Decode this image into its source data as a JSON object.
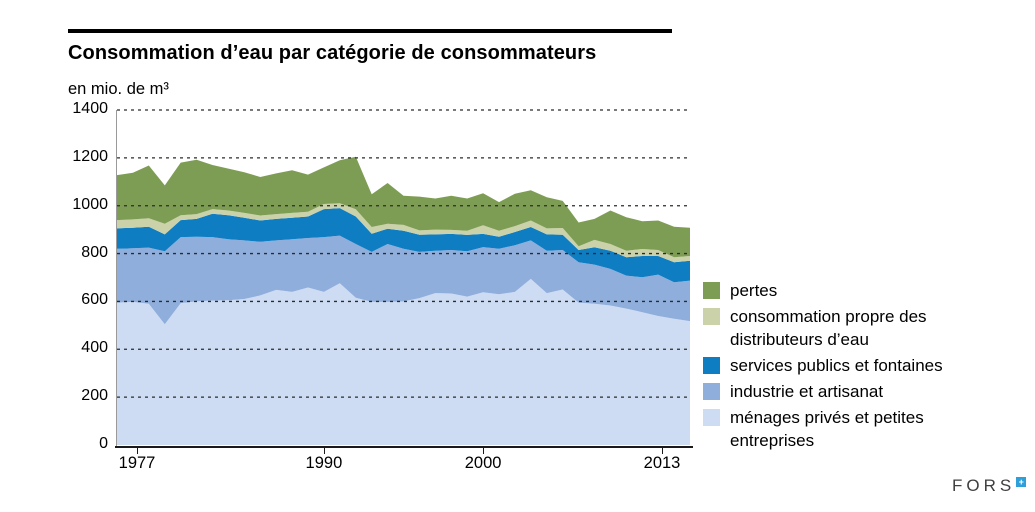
{
  "header": {
    "title": "Consommation d’eau par catégorie de consommateurs",
    "unit_label": "en mio. de m³"
  },
  "chart_data": {
    "type": "area",
    "stacked": true,
    "title": "Consommation d’eau par catégorie de consommateurs",
    "ylabel": "en mio. de m³",
    "ylim": [
      0,
      1400
    ],
    "yticks": [
      "0",
      "200",
      "400",
      "600",
      "800",
      "1000",
      "1200",
      "1400"
    ],
    "ytick_values": [
      0,
      200,
      400,
      600,
      800,
      1000,
      1200,
      1400
    ],
    "xticks": [
      1977,
      1990,
      2000,
      2013
    ],
    "grid": "horizontal-dashed",
    "legend_position": "right",
    "x": [
      1977,
      1978,
      1979,
      1980,
      1981,
      1982,
      1983,
      1984,
      1985,
      1986,
      1987,
      1988,
      1989,
      1990,
      1991,
      1992,
      1993,
      1994,
      1995,
      1996,
      1997,
      1998,
      1999,
      2000,
      2001,
      2002,
      2003,
      2004,
      2005,
      2006,
      2007,
      2008,
      2009,
      2010,
      2011,
      2012,
      2013
    ],
    "series": [
      {
        "name": "ménages privés et petites entreprises",
        "color": "#cddcf3",
        "values": [
          595,
          598,
          590,
          505,
          593,
          600,
          604,
          605,
          610,
          625,
          648,
          640,
          658,
          640,
          676,
          615,
          598,
          598,
          600,
          614,
          635,
          633,
          620,
          638,
          630,
          640,
          694,
          635,
          650,
          595,
          590,
          583,
          570,
          555,
          539,
          528,
          518
        ]
      },
      {
        "name": "industrie et artisanat",
        "color": "#8faedc",
        "values": [
          225,
          224,
          235,
          305,
          276,
          270,
          265,
          255,
          245,
          224,
          207,
          220,
          207,
          229,
          199,
          225,
          209,
          242,
          220,
          193,
          177,
          182,
          190,
          189,
          190,
          195,
          161,
          177,
          165,
          169,
          164,
          153,
          138,
          146,
          173,
          152,
          169
        ]
      },
      {
        "name": "services publics et fontaines",
        "color": "#0e7dc2",
        "values": [
          85,
          86,
          87,
          70,
          71,
          75,
          97,
          100,
          95,
          89,
          90,
          90,
          90,
          117,
          115,
          115,
          76,
          64,
          75,
          72,
          68,
          67,
          68,
          55,
          50,
          55,
          56,
          68,
          64,
          51,
          72,
          76,
          77,
          89,
          78,
          84,
          83
        ]
      },
      {
        "name": "consommation propre des distributeurs d’eau",
        "color": "#cbd2a9",
        "values": [
          35,
          35,
          36,
          45,
          20,
          20,
          20,
          20,
          20,
          21,
          20,
          20,
          20,
          21,
          20,
          30,
          28,
          21,
          25,
          18,
          20,
          17,
          17,
          36,
          25,
          25,
          27,
          25,
          28,
          16,
          31,
          28,
          27,
          29,
          25,
          21,
          20
        ]
      },
      {
        "name": "pertes",
        "color": "#7e9d54",
        "values": [
          188,
          195,
          220,
          160,
          220,
          227,
          184,
          175,
          170,
          161,
          170,
          178,
          155,
          153,
          180,
          220,
          137,
          170,
          122,
          141,
          130,
          143,
          135,
          134,
          120,
          135,
          127,
          130,
          113,
          99,
          88,
          140,
          140,
          116,
          123,
          127,
          118
        ]
      }
    ]
  },
  "legend": {
    "items": [
      {
        "label": "pertes",
        "color": "#7e9d54"
      },
      {
        "label": "consommation propre des distributeurs d’eau",
        "color": "#cbd2a9"
      },
      {
        "label": "services publics et fontaines",
        "color": "#0e7dc2"
      },
      {
        "label": "industrie et artisanat",
        "color": "#8faedc"
      },
      {
        "label": "ménages privés et petites entreprises",
        "color": "#cddcf3"
      }
    ]
  },
  "footer": {
    "logo_text": "FORS",
    "logo_mark": "+",
    "logo_mark_color": "#2e9fd9"
  }
}
